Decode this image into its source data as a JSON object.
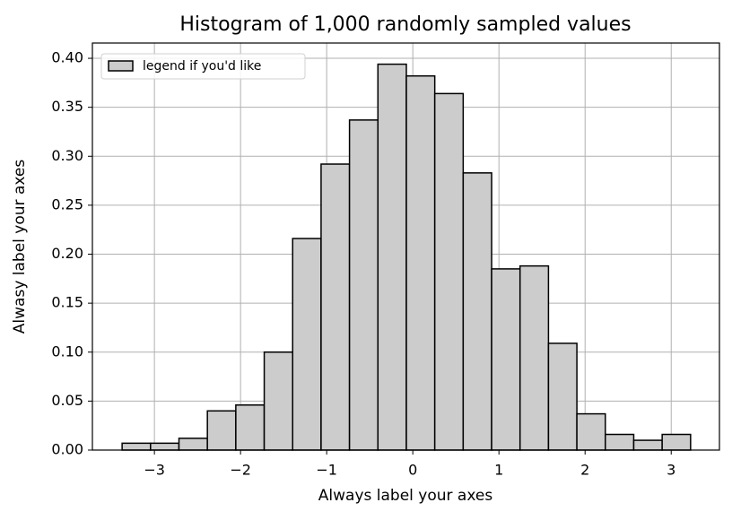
{
  "chart_data": {
    "type": "histogram",
    "title": "Histogram of 1,000 randomly sampled values",
    "x_label": "Always label your axes",
    "y_label": "Alwasy label your axes",
    "bins": [
      -3.375,
      -3.045,
      -2.715,
      -2.385,
      -2.055,
      -1.725,
      -1.395,
      -1.065,
      -0.735,
      -0.405,
      -0.075,
      0.255,
      0.585,
      0.915,
      1.245,
      1.575,
      1.905,
      2.235,
      2.565,
      2.895,
      3.225
    ],
    "series": [
      {
        "name": "legend if you'd like",
        "color": "#cccccc",
        "edgecolor": "#000000",
        "values": [
          0.007,
          0.007,
          0.012,
          0.04,
          0.046,
          0.1,
          0.216,
          0.292,
          0.337,
          0.394,
          0.382,
          0.364,
          0.283,
          0.185,
          0.188,
          0.109,
          0.037,
          0.016,
          0.01,
          0.016
        ]
      }
    ],
    "xlim": [
      -3.72,
      3.56
    ],
    "ylim": [
      0,
      0.4156
    ],
    "xticks": [
      {
        "value": -3,
        "label": "−3"
      },
      {
        "value": -2,
        "label": "−2"
      },
      {
        "value": -1,
        "label": "−1"
      },
      0,
      1,
      2,
      3
    ],
    "yticks": [
      {
        "value": 0,
        "label": "0.00"
      },
      {
        "value": 0.05,
        "label": "0.05"
      },
      {
        "value": 0.1,
        "label": "0.10"
      },
      {
        "value": 0.15,
        "label": "0.15"
      },
      {
        "value": 0.2,
        "label": "0.20"
      },
      {
        "value": 0.25,
        "label": "0.25"
      },
      {
        "value": 0.3,
        "label": "0.30"
      },
      {
        "value": 0.35,
        "label": "0.35"
      },
      {
        "value": 0.4,
        "label": "0.40"
      }
    ],
    "grid": true,
    "legend_position": "upper-left"
  }
}
